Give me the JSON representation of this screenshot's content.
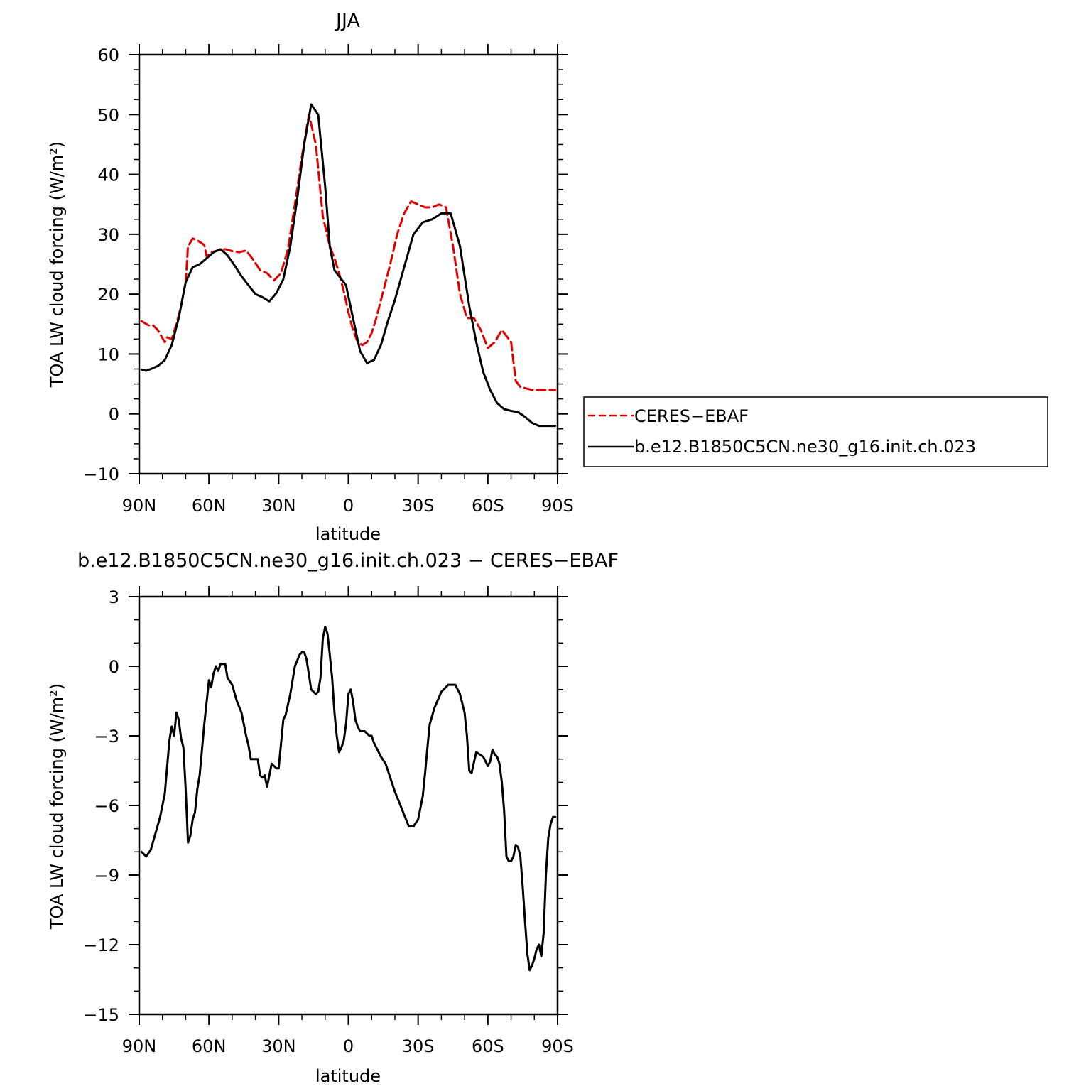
{
  "chart_data": [
    {
      "type": "line",
      "title": "JJA",
      "xlabel": "latitude",
      "ylabel": "TOA LW cloud forcing (W/m²)",
      "xlim": [
        90,
        -90
      ],
      "ylim": [
        -10,
        60
      ],
      "yticks": [
        "60",
        "50",
        "40",
        "30",
        "20",
        "10",
        "0",
        "−10"
      ],
      "ytick_values": [
        60,
        50,
        40,
        30,
        20,
        10,
        0,
        -10
      ],
      "xticks": [
        "90N",
        "60N",
        "30N",
        "0",
        "30S",
        "60S",
        "90S"
      ],
      "xtick_values": [
        90,
        60,
        30,
        0,
        -30,
        -60,
        -90
      ],
      "grid": false,
      "legend": "right",
      "series": [
        {
          "name": "CERES−EBAF",
          "color": "#e00000",
          "style": "dashed",
          "x": [
            89,
            86,
            84,
            82,
            79,
            78,
            76,
            74,
            72,
            70,
            69,
            67,
            65,
            62,
            61,
            59,
            56,
            53,
            50,
            47,
            44,
            41,
            38,
            35,
            32,
            29,
            26,
            23,
            20,
            17,
            14,
            11,
            8,
            6,
            4,
            2,
            0,
            -2,
            -4,
            -6,
            -8,
            -10,
            -12,
            -14,
            -16,
            -18,
            -21,
            -24,
            -27,
            -30,
            -33,
            -36,
            -39,
            -42,
            -45,
            -48,
            -51,
            -54,
            -57,
            -60,
            -63,
            -66,
            -68,
            -70,
            -72,
            -74,
            -77,
            -79,
            -81,
            -83,
            -85,
            -87,
            -89
          ],
          "y": [
            15.5,
            14.8,
            14.8,
            14.0,
            12.0,
            12.8,
            12.5,
            15.0,
            18.0,
            22.0,
            28.0,
            29.3,
            29.0,
            28.2,
            26.3,
            27.0,
            27.3,
            27.5,
            27.2,
            27.0,
            27.3,
            25.8,
            24.0,
            23.5,
            22.3,
            23.5,
            27.5,
            35.0,
            43.0,
            50.0,
            45.0,
            33.0,
            28.0,
            26.0,
            23.5,
            20.5,
            17.0,
            14.0,
            12.0,
            11.5,
            12.0,
            13.5,
            16.0,
            19.0,
            22.0,
            25.0,
            30.0,
            33.5,
            35.5,
            35.0,
            34.5,
            34.5,
            35.0,
            34.5,
            28.0,
            20.0,
            16.0,
            16.0,
            14.0,
            11.0,
            12.0,
            14.0,
            13.0,
            12.0,
            5.5,
            4.5,
            4.2,
            4.0,
            4.0,
            4.0,
            4.0,
            4.0,
            4.0
          ]
        },
        {
          "name": "b.e12.B1850C5CN.ne30_g16.init.ch.023",
          "color": "#000000",
          "style": "solid",
          "x": [
            89,
            87,
            85,
            82,
            79,
            76,
            73,
            70,
            67,
            64,
            61,
            58,
            55,
            52,
            49,
            46,
            43,
            40,
            37,
            34,
            31,
            28,
            25,
            22,
            19,
            16,
            13,
            10,
            8,
            6,
            3,
            1,
            -2,
            -5,
            -8,
            -11,
            -14,
            -17,
            -20,
            -24,
            -28,
            -32,
            -36,
            -40,
            -44,
            -48,
            -52,
            -55,
            -58,
            -61,
            -64,
            -67,
            -70,
            -73,
            -76,
            -79,
            -82,
            -85,
            -87,
            -89
          ],
          "y": [
            7.4,
            7.2,
            7.5,
            8.0,
            9.0,
            11.5,
            16.0,
            22.0,
            24.5,
            25.0,
            26.0,
            27.0,
            27.5,
            26.5,
            24.8,
            23.0,
            21.5,
            20.0,
            19.5,
            18.8,
            20.2,
            22.5,
            28.0,
            36.0,
            45.0,
            51.7,
            50.0,
            38.0,
            28.0,
            24.0,
            22.5,
            21.5,
            16.0,
            10.5,
            8.5,
            9.0,
            11.5,
            15.5,
            19.0,
            24.5,
            30.0,
            32.0,
            32.5,
            33.5,
            33.5,
            28.0,
            18.0,
            12.0,
            7.0,
            4.0,
            1.8,
            0.8,
            0.5,
            0.3,
            -0.5,
            -1.5,
            -2.0,
            -2.0,
            -2.0,
            -2.0
          ]
        }
      ]
    },
    {
      "type": "line",
      "title": "b.e12.B1850C5CN.ne30_g16.init.ch.023 − CERES−EBAF",
      "xlabel": "latitude",
      "ylabel": "TOA LW cloud forcing (W/m²)",
      "xlim": [
        90,
        -90
      ],
      "ylim": [
        -15,
        3
      ],
      "yticks": [
        "3",
        "0",
        "−3",
        "−6",
        "−9",
        "−12",
        "−15"
      ],
      "ytick_values": [
        3,
        0,
        -3,
        -6,
        -9,
        -12,
        -15
      ],
      "xticks": [
        "90N",
        "60N",
        "30N",
        "0",
        "30S",
        "60S",
        "90S"
      ],
      "xtick_values": [
        90,
        60,
        30,
        0,
        -30,
        -60,
        -90
      ],
      "grid": false,
      "series": [
        {
          "color": "#000000",
          "style": "solid",
          "x": [
            89,
            87,
            85,
            83,
            81,
            79,
            77,
            76,
            75,
            74,
            73,
            72,
            71,
            70,
            69,
            68,
            67,
            66,
            65,
            64,
            62,
            60,
            59,
            58,
            57,
            56,
            55,
            54,
            53,
            52,
            50,
            48,
            46,
            44,
            43,
            42,
            41,
            39,
            38,
            37,
            36,
            35,
            33,
            32,
            31,
            30,
            28,
            27,
            25,
            23,
            21,
            20,
            19,
            18,
            16,
            14,
            13,
            12,
            11,
            10,
            9,
            8,
            7,
            6,
            5,
            4,
            3,
            2,
            1,
            0,
            -1,
            -2,
            -3,
            -4,
            -5,
            -6,
            -7,
            -8,
            -9,
            -10,
            -11,
            -12,
            -14,
            -16,
            -18,
            -20,
            -22,
            -24,
            -26,
            -28,
            -30,
            -32,
            -33,
            -34,
            -35,
            -37,
            -40,
            -43,
            -46,
            -48,
            -50,
            -51,
            -52,
            -53,
            -55,
            -58,
            -59,
            -60,
            -61,
            -62,
            -63,
            -64,
            -65,
            -66,
            -67,
            -68,
            -69,
            -70,
            -71,
            -72,
            -73,
            -74,
            -75,
            -76,
            -77,
            -78,
            -79,
            -80,
            -81,
            -82,
            -83,
            -84,
            -85,
            -86,
            -87,
            -88,
            -89
          ],
          "y": [
            -8,
            -8.2,
            -7.9,
            -7.2,
            -6.5,
            -5.5,
            -3.2,
            -2.6,
            -3.0,
            -2.0,
            -2.3,
            -3.1,
            -3.5,
            -5.3,
            -7.6,
            -7.3,
            -6.6,
            -6.3,
            -5.3,
            -4.7,
            -2.5,
            -0.6,
            -0.9,
            -0.3,
            0.0,
            -0.2,
            0.1,
            0.1,
            0.1,
            -0.5,
            -0.8,
            -1.5,
            -2.0,
            -3.0,
            -3.4,
            -4.0,
            -4.0,
            -4.0,
            -4.7,
            -4.8,
            -4.7,
            -5.2,
            -4.2,
            -4.3,
            -4.4,
            -4.4,
            -2.3,
            -2.1,
            -1.2,
            0.0,
            0.5,
            0.6,
            0.6,
            0.3,
            -1.0,
            -1.2,
            -1.1,
            -0.5,
            1.2,
            1.7,
            1.4,
            0.5,
            -0.5,
            -2.0,
            -3.0,
            -3.7,
            -3.5,
            -3.2,
            -2.5,
            -1.2,
            -1.0,
            -1.5,
            -2.3,
            -2.6,
            -2.8,
            -2.8,
            -2.8,
            -2.9,
            -3.0,
            -3.0,
            -3.3,
            -3.5,
            -3.9,
            -4.2,
            -4.8,
            -5.4,
            -5.9,
            -6.4,
            -6.9,
            -6.9,
            -6.6,
            -5.6,
            -4.6,
            -3.5,
            -2.5,
            -1.8,
            -1.1,
            -0.8,
            -0.8,
            -1.2,
            -2.0,
            -3.0,
            -4.5,
            -4.6,
            -3.7,
            -3.9,
            -4.1,
            -4.3,
            -4.1,
            -3.6,
            -3.8,
            -3.9,
            -4.2,
            -5.0,
            -6.2,
            -8.2,
            -8.4,
            -8.4,
            -8.2,
            -7.7,
            -7.8,
            -8.2,
            -9.5,
            -11.0,
            -12.4,
            -13.1,
            -12.9,
            -12.6,
            -12.2,
            -12.0,
            -12.5,
            -11.5,
            -9.0,
            -7.4,
            -6.8,
            -6.5,
            -6.5
          ]
        }
      ]
    }
  ]
}
